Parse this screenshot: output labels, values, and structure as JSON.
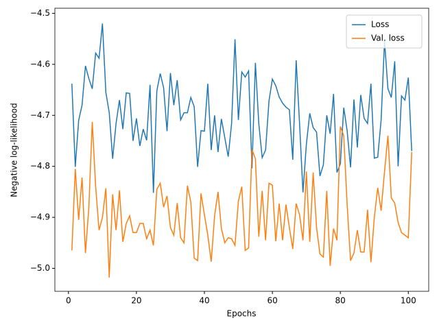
{
  "chart_data": {
    "type": "line",
    "xlabel": "Epochs",
    "ylabel": "Negative log-likelihood",
    "x": [
      1,
      2,
      3,
      4,
      5,
      6,
      7,
      8,
      9,
      10,
      11,
      12,
      13,
      14,
      15,
      16,
      17,
      18,
      19,
      20,
      21,
      22,
      23,
      24,
      25,
      26,
      27,
      28,
      29,
      30,
      31,
      32,
      33,
      34,
      35,
      36,
      37,
      38,
      39,
      40,
      41,
      42,
      43,
      44,
      45,
      46,
      47,
      48,
      49,
      50,
      51,
      52,
      53,
      54,
      55,
      56,
      57,
      58,
      59,
      60,
      61,
      62,
      63,
      64,
      65,
      66,
      67,
      68,
      69,
      70,
      71,
      72,
      73,
      74,
      75,
      76,
      77,
      78,
      79,
      80,
      81,
      82,
      83,
      84,
      85,
      86,
      87,
      88,
      89,
      90,
      91,
      92,
      93,
      94,
      95,
      96,
      97,
      98,
      99,
      100,
      101
    ],
    "series": [
      {
        "name": "Loss",
        "color": "#1f77b4",
        "values": [
          -4.638,
          -4.801,
          -4.71,
          -4.68,
          -4.603,
          -4.628,
          -4.648,
          -4.578,
          -4.588,
          -4.52,
          -4.655,
          -4.695,
          -4.785,
          -4.716,
          -4.67,
          -4.727,
          -4.656,
          -4.657,
          -4.75,
          -4.706,
          -4.76,
          -4.727,
          -4.749,
          -4.64,
          -4.852,
          -4.652,
          -4.618,
          -4.646,
          -4.731,
          -4.617,
          -4.68,
          -4.631,
          -4.709,
          -4.695,
          -4.695,
          -4.665,
          -4.683,
          -4.801,
          -4.73,
          -4.731,
          -4.638,
          -4.768,
          -4.7,
          -4.772,
          -4.707,
          -4.744,
          -4.781,
          -4.716,
          -4.551,
          -4.709,
          -4.615,
          -4.625,
          -4.613,
          -4.804,
          -4.597,
          -4.716,
          -4.783,
          -4.768,
          -4.672,
          -4.629,
          -4.642,
          -4.664,
          -4.676,
          -4.684,
          -4.689,
          -4.787,
          -4.592,
          -4.716,
          -4.851,
          -4.757,
          -4.696,
          -4.724,
          -4.733,
          -4.819,
          -4.797,
          -4.7,
          -4.736,
          -4.658,
          -4.812,
          -4.795,
          -4.685,
          -4.73,
          -4.802,
          -4.669,
          -4.763,
          -4.66,
          -4.706,
          -4.716,
          -4.638,
          -4.784,
          -4.782,
          -4.709,
          -4.554,
          -4.648,
          -4.665,
          -4.594,
          -4.8,
          -4.662,
          -4.67,
          -4.626,
          -4.77
        ]
      },
      {
        "name": "Val. loss",
        "color": "#ff7f0e",
        "values": [
          -4.965,
          -4.805,
          -4.905,
          -4.822,
          -4.97,
          -4.88,
          -4.713,
          -4.84,
          -4.925,
          -4.9,
          -4.843,
          -5.018,
          -4.855,
          -4.925,
          -4.847,
          -4.948,
          -4.912,
          -4.897,
          -4.93,
          -4.93,
          -4.912,
          -4.912,
          -4.942,
          -4.925,
          -4.955,
          -4.845,
          -4.833,
          -4.88,
          -4.858,
          -4.92,
          -4.935,
          -4.872,
          -4.94,
          -4.95,
          -4.838,
          -4.87,
          -4.98,
          -4.985,
          -4.853,
          -4.895,
          -4.935,
          -4.987,
          -4.897,
          -4.85,
          -4.922,
          -4.95,
          -4.94,
          -4.942,
          -4.955,
          -4.868,
          -4.84,
          -4.965,
          -4.96,
          -4.767,
          -4.785,
          -4.938,
          -4.848,
          -4.945,
          -4.833,
          -4.837,
          -4.947,
          -4.873,
          -4.945,
          -4.875,
          -4.92,
          -4.962,
          -4.873,
          -4.895,
          -4.945,
          -4.81,
          -4.948,
          -4.812,
          -4.92,
          -4.972,
          -4.978,
          -4.848,
          -4.995,
          -4.922,
          -4.945,
          -4.722,
          -4.74,
          -4.875,
          -4.985,
          -4.97,
          -4.925,
          -4.968,
          -4.968,
          -4.885,
          -4.988,
          -4.9,
          -4.842,
          -4.887,
          -4.81,
          -4.74,
          -4.862,
          -4.872,
          -4.91,
          -4.93,
          -4.935,
          -4.94,
          -4.772
        ]
      }
    ],
    "xlim": [
      -4,
      106
    ],
    "xticks": [
      0,
      20,
      40,
      60,
      80,
      100
    ],
    "ylim": [
      -5.045,
      -4.49
    ],
    "yticks": [
      {
        "value": -4.5,
        "label": "−4.5"
      },
      {
        "value": -4.6,
        "label": "−4.6"
      },
      {
        "value": -4.7,
        "label": "−4.7"
      },
      {
        "value": -4.8,
        "label": "−4.8"
      },
      {
        "value": -4.9,
        "label": "−4.9"
      },
      {
        "value": -5.0,
        "label": "−5.0"
      }
    ],
    "legend": "upper-right"
  }
}
